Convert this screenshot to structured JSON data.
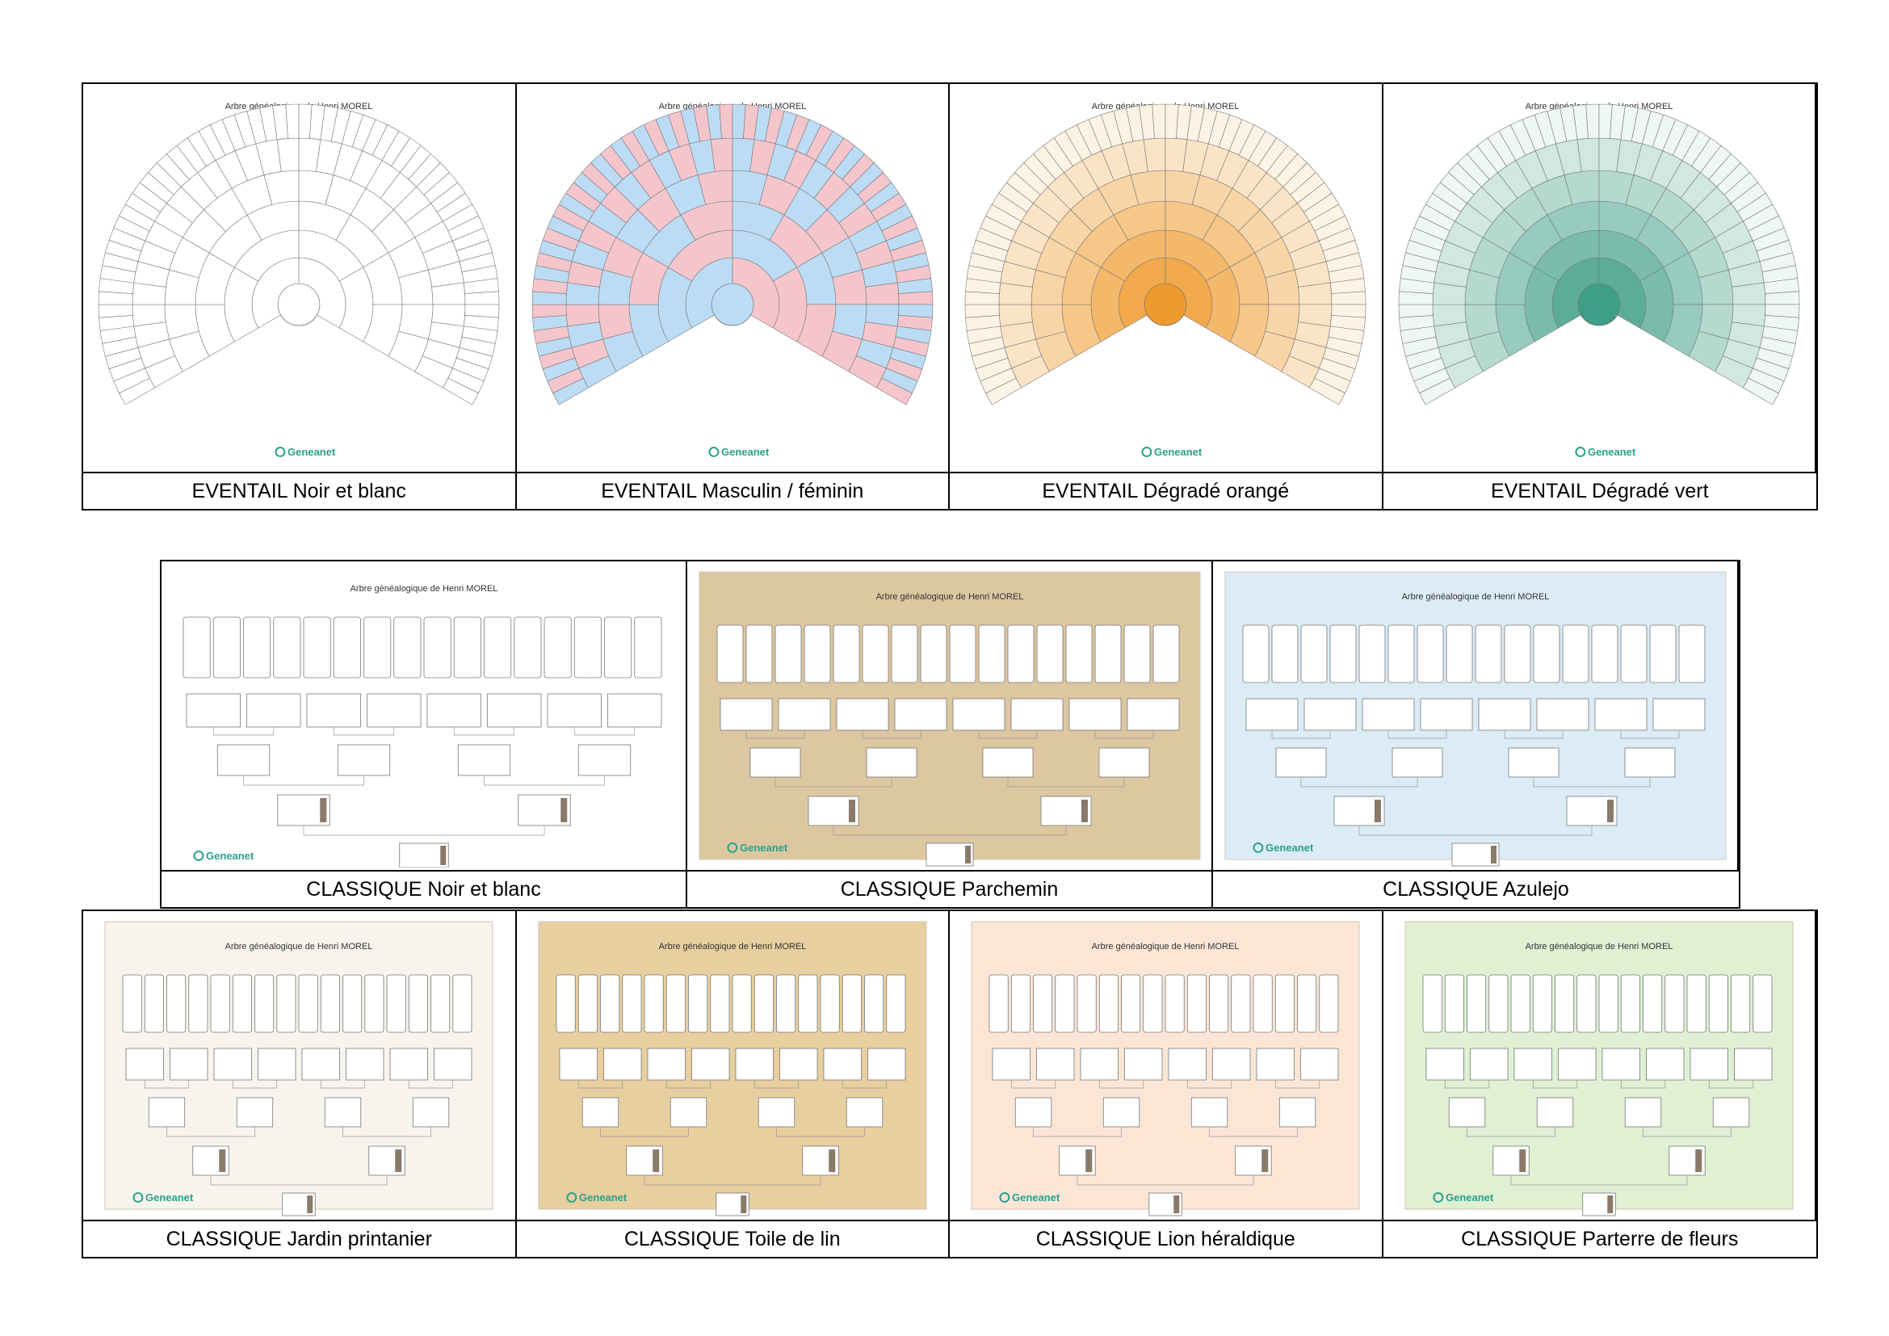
{
  "title": "Arbre généalogique de Henri MOREL",
  "brand": "Geneanet",
  "eventail": [
    {
      "label": "EVENTAIL Noir et blanc",
      "style": "nb"
    },
    {
      "label": "EVENTAIL Masculin / féminin",
      "style": "mf"
    },
    {
      "label": "EVENTAIL Dégradé orangé",
      "style": "orange"
    },
    {
      "label": "EVENTAIL Dégradé vert",
      "style": "green"
    }
  ],
  "classique1": [
    {
      "label": "CLASSIQUE Noir et blanc",
      "bg": "#ffffff",
      "frame": false
    },
    {
      "label": "CLASSIQUE Parchemin",
      "bg": "#dcc7a1",
      "frame": true
    },
    {
      "label": "CLASSIQUE Azulejo",
      "bg": "#dcecf6",
      "frame": true
    }
  ],
  "classique2": [
    {
      "label": "CLASSIQUE Jardin printanier",
      "bg": "#f6f4ec",
      "frame": true
    },
    {
      "label": "CLASSIQUE Toile de lin",
      "bg": "#e7cf9f",
      "frame": true
    },
    {
      "label": "CLASSIQUE Lion héraldique",
      "bg": "#fbe6d6",
      "frame": true
    },
    {
      "label": "CLASSIQUE Parterre de fleurs",
      "bg": "#dff0d3",
      "frame": true
    }
  ],
  "colors": {
    "geneanet": "#2aa18a",
    "male": "#bcdcf5",
    "female": "#f4c6cc"
  }
}
